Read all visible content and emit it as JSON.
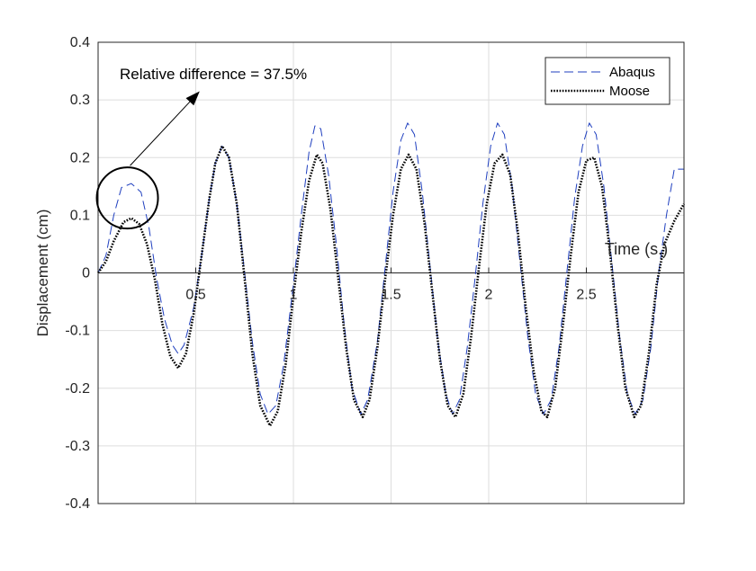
{
  "chart_data": {
    "type": "line",
    "title": "",
    "xlabel": "Time (s.)",
    "ylabel": "Displacement (cm)",
    "xlim": [
      0,
      3
    ],
    "ylim": [
      -0.4,
      0.4
    ],
    "xticks": [
      0.5,
      1,
      1.5,
      2,
      2.5
    ],
    "xtick_labels": [
      "0.5",
      "1",
      "1.5",
      "2",
      "2.5"
    ],
    "yticks": [
      -0.4,
      -0.3,
      -0.2,
      -0.1,
      0,
      0.1,
      0.2,
      0.3,
      0.4
    ],
    "ytick_labels": [
      "-0.4",
      "-0.3",
      "-0.2",
      "-0.1",
      "0",
      "0.1",
      "0.2",
      "0.3",
      "0.4"
    ],
    "grid": true,
    "legend_position": "top-right",
    "annotation": {
      "text": "Relative difference = 37.5%",
      "circle_center": [
        0.15,
        0.13
      ],
      "arrow_tip": [
        0.52,
        0.315
      ]
    },
    "series": [
      {
        "name": "Abaqus",
        "color": "#1f3fbf",
        "style": "dashed",
        "points": [
          [
            0,
            0
          ],
          [
            0.04,
            0.03
          ],
          [
            0.08,
            0.1
          ],
          [
            0.12,
            0.148
          ],
          [
            0.17,
            0.155
          ],
          [
            0.22,
            0.14
          ],
          [
            0.26,
            0.08
          ],
          [
            0.3,
            -0.01
          ],
          [
            0.34,
            -0.08
          ],
          [
            0.38,
            -0.125
          ],
          [
            0.41,
            -0.14
          ],
          [
            0.44,
            -0.125
          ],
          [
            0.49,
            -0.06
          ],
          [
            0.53,
            0.03
          ],
          [
            0.57,
            0.13
          ],
          [
            0.6,
            0.19
          ],
          [
            0.635,
            0.22
          ],
          [
            0.67,
            0.2
          ],
          [
            0.71,
            0.12
          ],
          [
            0.75,
            0.0
          ],
          [
            0.79,
            -0.12
          ],
          [
            0.83,
            -0.21
          ],
          [
            0.87,
            -0.245
          ],
          [
            0.91,
            -0.23
          ],
          [
            0.95,
            -0.16
          ],
          [
            1.0,
            -0.02
          ],
          [
            1.04,
            0.1
          ],
          [
            1.08,
            0.21
          ],
          [
            1.11,
            0.255
          ],
          [
            1.14,
            0.25
          ],
          [
            1.18,
            0.17
          ],
          [
            1.22,
            0.05
          ],
          [
            1.26,
            -0.09
          ],
          [
            1.3,
            -0.2
          ],
          [
            1.345,
            -0.245
          ],
          [
            1.38,
            -0.22
          ],
          [
            1.43,
            -0.12
          ],
          [
            1.47,
            0.01
          ],
          [
            1.51,
            0.14
          ],
          [
            1.55,
            0.23
          ],
          [
            1.585,
            0.26
          ],
          [
            1.62,
            0.24
          ],
          [
            1.66,
            0.14
          ],
          [
            1.7,
            0.01
          ],
          [
            1.74,
            -0.12
          ],
          [
            1.78,
            -0.21
          ],
          [
            1.815,
            -0.245
          ],
          [
            1.85,
            -0.22
          ],
          [
            1.89,
            -0.13
          ],
          [
            1.93,
            -0.01
          ],
          [
            1.97,
            0.12
          ],
          [
            2.01,
            0.22
          ],
          [
            2.045,
            0.26
          ],
          [
            2.08,
            0.24
          ],
          [
            2.12,
            0.15
          ],
          [
            2.16,
            0.02
          ],
          [
            2.2,
            -0.11
          ],
          [
            2.24,
            -0.21
          ],
          [
            2.28,
            -0.245
          ],
          [
            2.32,
            -0.22
          ],
          [
            2.36,
            -0.13
          ],
          [
            2.4,
            0.0
          ],
          [
            2.44,
            0.13
          ],
          [
            2.48,
            0.22
          ],
          [
            2.515,
            0.26
          ],
          [
            2.55,
            0.24
          ],
          [
            2.59,
            0.15
          ],
          [
            2.63,
            0.02
          ],
          [
            2.67,
            -0.11
          ],
          [
            2.71,
            -0.21
          ],
          [
            2.75,
            -0.245
          ],
          [
            2.79,
            -0.22
          ],
          [
            2.83,
            -0.13
          ],
          [
            2.87,
            0.0
          ],
          [
            2.91,
            0.1
          ],
          [
            2.95,
            0.18
          ],
          [
            3.0,
            0.18
          ]
        ]
      },
      {
        "name": "Moose",
        "color": "#000000",
        "style": "dotted",
        "points": [
          [
            0,
            0
          ],
          [
            0.04,
            0.02
          ],
          [
            0.08,
            0.055
          ],
          [
            0.13,
            0.088
          ],
          [
            0.17,
            0.095
          ],
          [
            0.21,
            0.085
          ],
          [
            0.25,
            0.05
          ],
          [
            0.29,
            -0.01
          ],
          [
            0.33,
            -0.09
          ],
          [
            0.37,
            -0.145
          ],
          [
            0.41,
            -0.165
          ],
          [
            0.45,
            -0.14
          ],
          [
            0.49,
            -0.07
          ],
          [
            0.53,
            0.03
          ],
          [
            0.57,
            0.13
          ],
          [
            0.6,
            0.19
          ],
          [
            0.635,
            0.22
          ],
          [
            0.67,
            0.2
          ],
          [
            0.71,
            0.12
          ],
          [
            0.75,
            -0.01
          ],
          [
            0.79,
            -0.14
          ],
          [
            0.83,
            -0.23
          ],
          [
            0.88,
            -0.265
          ],
          [
            0.92,
            -0.24
          ],
          [
            0.96,
            -0.16
          ],
          [
            1.0,
            -0.04
          ],
          [
            1.04,
            0.07
          ],
          [
            1.08,
            0.16
          ],
          [
            1.12,
            0.205
          ],
          [
            1.15,
            0.19
          ],
          [
            1.19,
            0.11
          ],
          [
            1.23,
            -0.01
          ],
          [
            1.27,
            -0.13
          ],
          [
            1.31,
            -0.22
          ],
          [
            1.355,
            -0.25
          ],
          [
            1.39,
            -0.22
          ],
          [
            1.43,
            -0.13
          ],
          [
            1.47,
            -0.01
          ],
          [
            1.51,
            0.1
          ],
          [
            1.55,
            0.18
          ],
          [
            1.59,
            0.205
          ],
          [
            1.63,
            0.18
          ],
          [
            1.67,
            0.09
          ],
          [
            1.71,
            -0.03
          ],
          [
            1.75,
            -0.15
          ],
          [
            1.79,
            -0.23
          ],
          [
            1.83,
            -0.25
          ],
          [
            1.87,
            -0.21
          ],
          [
            1.91,
            -0.11
          ],
          [
            1.95,
            0.01
          ],
          [
            1.99,
            0.12
          ],
          [
            2.03,
            0.19
          ],
          [
            2.07,
            0.205
          ],
          [
            2.11,
            0.17
          ],
          [
            2.15,
            0.07
          ],
          [
            2.19,
            -0.06
          ],
          [
            2.23,
            -0.17
          ],
          [
            2.27,
            -0.24
          ],
          [
            2.3,
            -0.25
          ],
          [
            2.34,
            -0.2
          ],
          [
            2.38,
            -0.09
          ],
          [
            2.42,
            0.03
          ],
          [
            2.46,
            0.14
          ],
          [
            2.5,
            0.195
          ],
          [
            2.54,
            0.2
          ],
          [
            2.58,
            0.15
          ],
          [
            2.62,
            0.04
          ],
          [
            2.66,
            -0.09
          ],
          [
            2.7,
            -0.2
          ],
          [
            2.745,
            -0.25
          ],
          [
            2.78,
            -0.23
          ],
          [
            2.82,
            -0.14
          ],
          [
            2.86,
            -0.02
          ],
          [
            2.9,
            0.05
          ],
          [
            2.95,
            0.09
          ],
          [
            3.0,
            0.12
          ]
        ]
      }
    ]
  }
}
